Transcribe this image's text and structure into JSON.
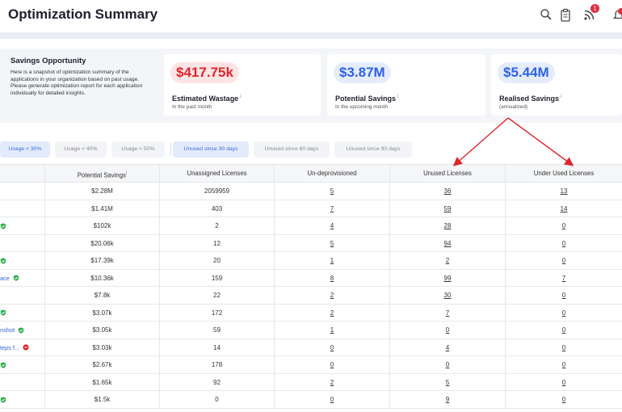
{
  "header": {
    "title": "Optimization Summary",
    "notification_count": "1"
  },
  "icons": [
    "search-icon",
    "clipboard-icon",
    "rss-icon",
    "bell-icon",
    "shield-check-icon",
    "minus-circle-icon"
  ],
  "savings": {
    "heading": "Savings Opportunity",
    "description": "Here is a snapshot of optimization summary of the applications in your organization based on past usage. Please generate optimization report for each application individually for detailed insights.",
    "cards": [
      {
        "value": "$417.75k",
        "label": "Estimated Wastage",
        "sub": "In the past month",
        "tone": "red"
      },
      {
        "value": "$3.87M",
        "label": "Potential Savings",
        "sub": "In the upcoming month",
        "tone": "blue"
      },
      {
        "value": "$5.44M",
        "label": "Realised Savings",
        "sub": "(annualized)",
        "tone": "blue"
      }
    ],
    "info_mark": "i"
  },
  "filters": [
    {
      "label": "Usage < 30%",
      "active": true
    },
    {
      "label": "Usage < 40%",
      "active": false
    },
    {
      "label": "Usage < 50%",
      "active": false
    },
    {
      "label": "Unused since 30 days",
      "active": true
    },
    {
      "label": "Unused since 60 days",
      "active": false
    },
    {
      "label": "Unused since 90 days",
      "active": false
    }
  ],
  "table": {
    "columns": [
      "Potential Savings",
      "Unassigned Licenses",
      "Un-deprovisioned",
      "Unused Licenses",
      "Under Used Licenses"
    ],
    "rows": [
      {
        "name": "",
        "status": "",
        "savings": "$2.28M",
        "unassigned": "2059959",
        "undeprov": "5",
        "unused": "36",
        "underused": "13"
      },
      {
        "name": "",
        "status": "",
        "savings": "$1.41M",
        "unassigned": "403",
        "undeprov": "7",
        "unused": "59",
        "underused": "14"
      },
      {
        "name": "",
        "status": "ok",
        "savings": "$102k",
        "unassigned": "2",
        "undeprov": "4",
        "unused": "28",
        "underused": "0"
      },
      {
        "name": "",
        "status": "",
        "savings": "$20.06k",
        "unassigned": "12",
        "undeprov": "5",
        "unused": "94",
        "underused": "0"
      },
      {
        "name": "",
        "status": "ok",
        "savings": "$17.39k",
        "unassigned": "20",
        "undeprov": "1",
        "unused": "2",
        "underused": "0"
      },
      {
        "name": "ace",
        "status": "ok",
        "savings": "$10.36k",
        "unassigned": "159",
        "undeprov": "8",
        "unused": "99",
        "underused": "7"
      },
      {
        "name": "",
        "status": "",
        "savings": "$7.8k",
        "unassigned": "22",
        "undeprov": "2",
        "unused": "30",
        "underused": "0"
      },
      {
        "name": "",
        "status": "ok",
        "savings": "$3.07k",
        "unassigned": "172",
        "undeprov": "2",
        "unused": "7",
        "underused": "0"
      },
      {
        "name": "nshot",
        "status": "ok",
        "savings": "$3.05k",
        "unassigned": "59",
        "undeprov": "1",
        "unused": "0",
        "underused": "0"
      },
      {
        "name": "teps f...",
        "status": "blocked",
        "savings": "$3.03k",
        "unassigned": "14",
        "undeprov": "0",
        "unused": "4",
        "underused": "0"
      },
      {
        "name": "",
        "status": "ok",
        "savings": "$2.67k",
        "unassigned": "178",
        "undeprov": "0",
        "unused": "0",
        "underused": "0"
      },
      {
        "name": "",
        "status": "",
        "savings": "$1.65k",
        "unassigned": "92",
        "undeprov": "2",
        "unused": "5",
        "underused": "0"
      },
      {
        "name": "",
        "status": "ok",
        "savings": "$1.5k",
        "unassigned": "0",
        "undeprov": "0",
        "unused": "9",
        "underused": "0"
      }
    ]
  },
  "colors": {
    "accent": "#2f63e6",
    "alert": "#e0252b",
    "ok": "#2fae4e",
    "arrow": "#e0252b"
  }
}
